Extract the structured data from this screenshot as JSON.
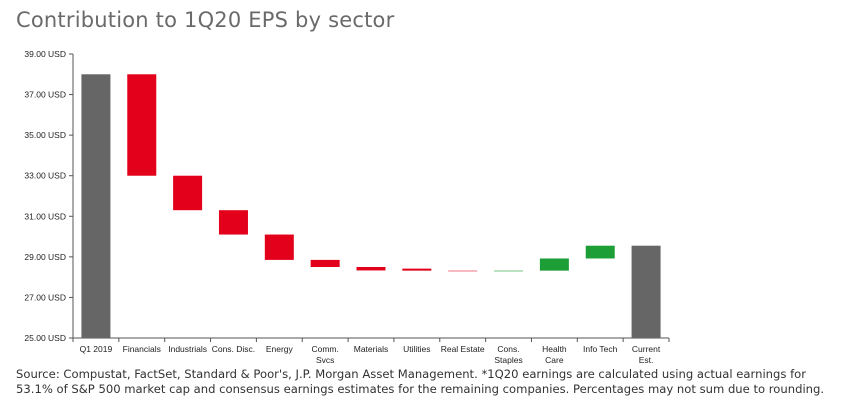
{
  "title": "Contribution to 1Q20 EPS by sector",
  "source": "Source: Compustat, FactSet, Standard & Poor's, J.P. Morgan Asset Management. *1Q20 earnings are calculated using actual earnings for 53.1% of S&P 500 market cap and consensus earnings estimates for the remaining companies. Percentages may not sum due to rounding.",
  "colors": {
    "total": "#666666",
    "negative": "#e3001b",
    "negative_small": "#f4a3ac",
    "positive": "#1e9e37",
    "positive_small": "#a6d8b0",
    "axis": "#555555"
  },
  "chart_data": {
    "type": "bar",
    "subtype": "waterfall",
    "title": "Contribution to 1Q20 EPS by sector",
    "xlabel": "",
    "ylabel": "",
    "ylim": [
      25.0,
      39.0
    ],
    "yticks": [
      "25.00 USD",
      "27.00 USD",
      "29.00 USD",
      "31.00 USD",
      "33.00 USD",
      "35.00 USD",
      "37.00 USD",
      "39.00 USD"
    ],
    "grid": false,
    "legend": "none",
    "categories": [
      [
        "Q1 2019"
      ],
      [
        "Financials"
      ],
      [
        "Industrials"
      ],
      [
        "Cons. Disc."
      ],
      [
        "Energy"
      ],
      [
        "Comm.",
        "Svcs"
      ],
      [
        "Materials"
      ],
      [
        "Utilities"
      ],
      [
        "Real Estate"
      ],
      [
        "Cons.",
        "Staples"
      ],
      [
        "Health",
        "Care"
      ],
      [
        "Info Tech"
      ],
      [
        "Current",
        "Est."
      ]
    ],
    "bars": [
      {
        "kind": "total",
        "start": 25.0,
        "end": 38.0
      },
      {
        "kind": "negative",
        "start": 38.0,
        "end": 33.0
      },
      {
        "kind": "negative",
        "start": 33.0,
        "end": 31.3
      },
      {
        "kind": "negative",
        "start": 31.3,
        "end": 30.1
      },
      {
        "kind": "negative",
        "start": 30.1,
        "end": 28.85
      },
      {
        "kind": "negative",
        "start": 28.85,
        "end": 28.5
      },
      {
        "kind": "negative",
        "start": 28.5,
        "end": 28.33
      },
      {
        "kind": "negative",
        "start": 28.42,
        "end": 28.32
      },
      {
        "kind": "negative_small",
        "start": 28.34,
        "end": 28.28
      },
      {
        "kind": "positive_small",
        "start": 28.28,
        "end": 28.34
      },
      {
        "kind": "positive",
        "start": 28.32,
        "end": 28.92
      },
      {
        "kind": "positive",
        "start": 28.92,
        "end": 29.55
      },
      {
        "kind": "total",
        "start": 25.0,
        "end": 29.55
      }
    ]
  }
}
